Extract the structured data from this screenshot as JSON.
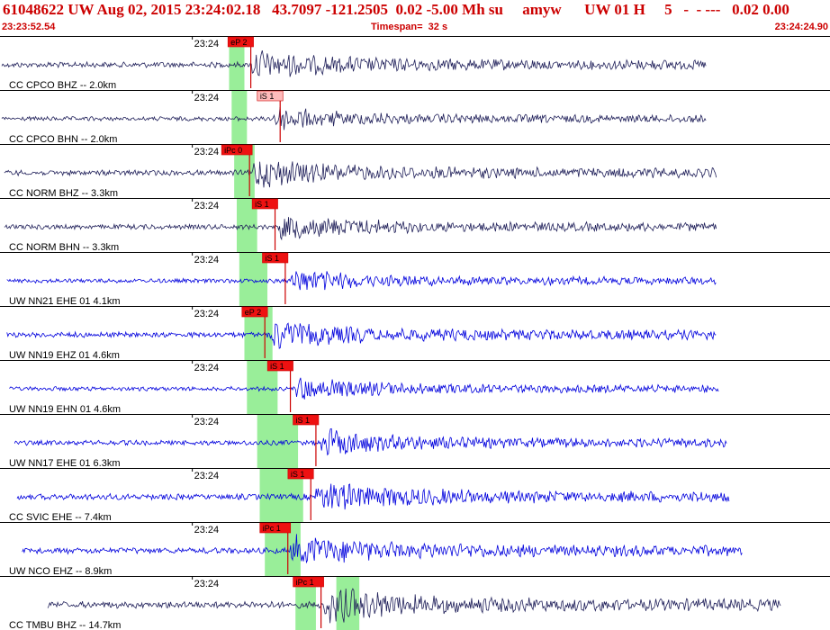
{
  "header": {
    "title": "61048622 UW Aug 02, 2015 23:24:02.18   43.7097 -121.2505  0.02 -5.00 Mh su     amyw      UW 01 H     5   -  - ---   0.02 0.00",
    "start_time": "23:23:52.54",
    "timespan": "Timespan=  32 s",
    "end_time": "23:24:24.90"
  },
  "colors": {
    "background": "#ffffff",
    "title": "#cc0000",
    "trace_bh": "#20205a",
    "trace_eh": "#0000dd",
    "pick_line": "#cc0000",
    "pick_label_bg": "#ee1111",
    "pick_label_bg_light": "#ffbbbb",
    "window_band": "#99ee99",
    "separator": "#000000"
  },
  "chart_data": {
    "type": "line",
    "title": "",
    "time_axis": {
      "start": "23:23:52.54",
      "end": "23:24:24.90",
      "span_s": 32.36,
      "minute_mark": "23:24",
      "minute_mark_s": 7.46
    },
    "traces": [
      {
        "name": "CC CPCO BHZ -- 2.0km",
        "channel_type": "BH",
        "data_start_s": 0.0,
        "data_end_s": 27.6,
        "amplitude": 0.45,
        "onset_s": 9.8,
        "picks": [
          {
            "label": "eP 2",
            "t": 9.75
          }
        ],
        "window_s": [
          8.9,
          9.5
        ]
      },
      {
        "name": "CC CPCO BHN -- 2.0km",
        "channel_type": "BH",
        "data_start_s": 0.0,
        "data_end_s": 27.6,
        "amplitude": 0.35,
        "onset_s": 10.6,
        "picks": [
          {
            "label": "iS 1",
            "t": 10.9,
            "light": true
          }
        ],
        "window_s": [
          9.0,
          9.6
        ]
      },
      {
        "name": "CC NORM BHZ -- 3.3km",
        "channel_type": "BH",
        "data_start_s": 0.1,
        "data_end_s": 28.0,
        "amplitude": 0.45,
        "onset_s": 9.8,
        "picks": [
          {
            "label": "iPc 0",
            "t": 9.7
          }
        ],
        "window_s": [
          9.1,
          9.9
        ]
      },
      {
        "name": "CC NORM BHN -- 3.3km",
        "channel_type": "BH",
        "data_start_s": 0.1,
        "data_end_s": 28.0,
        "amplitude": 0.4,
        "onset_s": 10.8,
        "picks": [
          {
            "label": "iS 1",
            "t": 10.7
          }
        ],
        "window_s": [
          9.2,
          10.0
        ]
      },
      {
        "name": "UW NN21 EHE 01 4.1km",
        "channel_type": "EH",
        "data_start_s": 0.2,
        "data_end_s": 28.0,
        "amplitude": 0.35,
        "onset_s": 11.3,
        "picks": [
          {
            "label": "iS 1",
            "t": 11.1
          }
        ],
        "window_s": [
          9.3,
          10.4
        ]
      },
      {
        "name": "UW NN19 EHZ 01 4.6km",
        "channel_type": "EH",
        "data_start_s": 0.2,
        "data_end_s": 28.0,
        "amplitude": 0.45,
        "onset_s": 10.5,
        "picks": [
          {
            "label": "eP 2",
            "t": 10.3
          }
        ],
        "window_s": [
          9.5,
          10.6
        ]
      },
      {
        "name": "UW NN19 EHN 01 4.6km",
        "channel_type": "EH",
        "data_start_s": 0.3,
        "data_end_s": 28.1,
        "amplitude": 0.35,
        "onset_s": 11.5,
        "picks": [
          {
            "label": "iS 1",
            "t": 11.3
          }
        ],
        "window_s": [
          9.6,
          10.8
        ]
      },
      {
        "name": "UW NN17 EHE 01 6.3km",
        "channel_type": "EH",
        "data_start_s": 0.5,
        "data_end_s": 28.4,
        "amplitude": 0.4,
        "onset_s": 12.5,
        "picks": [
          {
            "label": "iS 1",
            "t": 12.3
          }
        ],
        "window_s": [
          10.0,
          11.6
        ]
      },
      {
        "name": "CC SVIC EHE -- 7.4km",
        "channel_type": "EH",
        "data_start_s": 0.6,
        "data_end_s": 28.5,
        "amplitude": 0.5,
        "onset_s": 12.3,
        "picks": [
          {
            "label": "iS 1",
            "t": 12.1
          }
        ],
        "window_s": [
          10.1,
          11.8
        ]
      },
      {
        "name": "UW NCO EHZ -- 8.9km",
        "channel_type": "EH",
        "data_start_s": 0.8,
        "data_end_s": 29.0,
        "amplitude": 0.5,
        "onset_s": 11.3,
        "picks": [
          {
            "label": "iPc 1",
            "t": 11.2
          }
        ],
        "window_s": [
          10.3,
          11.7
        ]
      },
      {
        "name": "CC TMBU BHZ -- 14.7km",
        "channel_type": "BH",
        "data_start_s": 1.8,
        "data_end_s": 30.5,
        "amplitude": 0.55,
        "onset_s": 12.6,
        "picks": [
          {
            "label": "iPc 1",
            "t": 12.5
          }
        ],
        "window_s": [
          11.5,
          12.3
        ]
      }
    ]
  }
}
